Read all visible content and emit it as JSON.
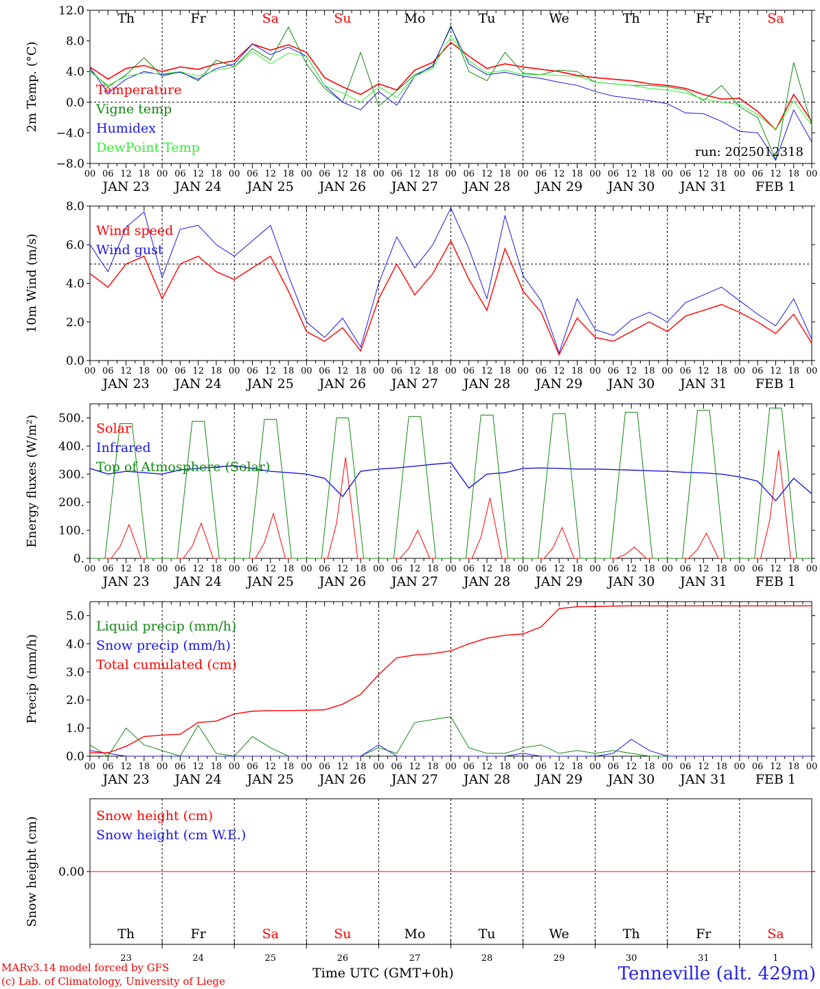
{
  "footer": {
    "credit_line1": "MARv3.14 model forced by GFS",
    "credit_line2": "(c) Lab. of Climatology, University of Liege",
    "x_title": "Time UTC (GMT+0h)",
    "station": "Tenneville (alt. 429m)"
  },
  "colors": {
    "red": "#ff0000",
    "green": "#118811",
    "blue": "#1818e0",
    "lightgreen": "#33ee33",
    "grid": "#000000"
  },
  "hour_ticks": [
    "00",
    "06",
    "12",
    "18"
  ],
  "final_hour_tick": "00",
  "day_ticks": [
    "JAN 23",
    "JAN 24",
    "JAN 25",
    "JAN 26",
    "JAN 27",
    "JAN 28",
    "JAN 29",
    "JAN 30",
    "JAN 31",
    "FEB  1"
  ],
  "weekdays": [
    "Th",
    "Fr",
    "Sa",
    "Su",
    "Mo",
    "Tu",
    "We",
    "Th",
    "Fr",
    "Sa"
  ],
  "weekend_days": [
    2,
    3,
    9
  ],
  "day_numbers": [
    "23",
    "24",
    "25",
    "26",
    "27",
    "28",
    "29",
    "30",
    "31",
    "1"
  ],
  "chart_data": [
    {
      "type": "line",
      "id": "temp",
      "ylabel": "2m Temp. (°C)",
      "ylim": [
        -8,
        12
      ],
      "yticks": [
        "12.0",
        "8.0",
        "4.0",
        "0.0",
        "−4.0",
        "−8.0"
      ],
      "ytick_values": [
        12,
        8,
        4,
        0,
        -4,
        -8
      ],
      "dashed_ref": 0,
      "annotation": "run: 2025012318",
      "x": [
        0,
        6,
        12,
        18,
        24,
        30,
        36,
        42,
        48,
        54,
        60,
        66,
        72,
        78,
        84,
        90,
        96,
        102,
        108,
        114,
        120,
        126,
        132,
        138,
        144,
        150,
        156,
        162,
        168,
        174,
        180,
        186,
        192,
        198,
        204,
        210,
        216,
        222,
        228,
        234,
        240
      ],
      "series": [
        {
          "name": "Temperature",
          "color": "red",
          "width": 1.6,
          "values": [
            4.6,
            3.0,
            4.4,
            4.8,
            4.0,
            4.6,
            4.3,
            5.0,
            5.4,
            7.6,
            6.8,
            7.5,
            6.5,
            3.2,
            2.0,
            1.0,
            2.4,
            1.6,
            4.2,
            5.2,
            7.8,
            6.0,
            4.4,
            5.0,
            4.6,
            4.3,
            4.0,
            3.5,
            3.2,
            3.0,
            2.8,
            2.4,
            2.2,
            1.8,
            1.0,
            0.4,
            0.5,
            -1.2,
            -3.6,
            1.0,
            -2.5
          ]
        },
        {
          "name": "Vigne temp",
          "color": "green",
          "width": 1,
          "values": [
            4.2,
            2.0,
            3.6,
            5.8,
            3.4,
            4.0,
            2.8,
            5.5,
            4.6,
            7.0,
            5.5,
            9.8,
            5.0,
            1.8,
            0.0,
            6.5,
            -0.5,
            1.5,
            3.6,
            4.6,
            10.0,
            4.0,
            2.8,
            6.5,
            3.8,
            3.6,
            4.2,
            4.0,
            2.6,
            2.4,
            2.2,
            2.2,
            2.0,
            1.6,
            0.2,
            2.2,
            -0.6,
            -2.0,
            -7.5,
            5.2,
            -3.0
          ]
        },
        {
          "name": "Humidex",
          "color": "blue",
          "width": 1,
          "values": [
            4.5,
            1.2,
            3.0,
            4.0,
            3.6,
            3.9,
            3.0,
            4.4,
            5.0,
            7.6,
            6.2,
            7.2,
            6.0,
            2.2,
            0.0,
            -1.0,
            1.4,
            -0.4,
            3.4,
            4.8,
            9.8,
            5.0,
            3.6,
            3.9,
            3.4,
            3.1,
            2.6,
            2.2,
            1.4,
            0.8,
            0.5,
            0.2,
            -0.2,
            -1.4,
            -1.5,
            -2.5,
            -3.8,
            -4.0,
            -7.6,
            -1.0,
            -5.2
          ]
        },
        {
          "name": "DewPoint Temp",
          "color": "lightgreen",
          "width": 1,
          "values": [
            4.0,
            2.2,
            3.4,
            3.8,
            3.7,
            4.0,
            3.4,
            4.2,
            4.6,
            6.6,
            5.0,
            6.4,
            6.0,
            2.2,
            1.2,
            0.0,
            2.0,
            0.6,
            3.4,
            4.4,
            8.6,
            5.4,
            3.8,
            4.2,
            3.6,
            3.6,
            3.5,
            3.4,
            2.6,
            2.4,
            2.2,
            1.8,
            1.6,
            1.2,
            0.4,
            0.0,
            -0.3,
            -1.6,
            -3.6,
            0.2,
            -3.0
          ]
        }
      ]
    },
    {
      "type": "line",
      "id": "wind",
      "ylabel": "10m Wind (m/s)",
      "ylim": [
        0,
        8
      ],
      "yticks": [
        "8.0",
        "6.0",
        "4.0",
        "2.0",
        "0.0"
      ],
      "ytick_values": [
        8,
        6,
        4,
        2,
        0
      ],
      "dashed_ref": 5,
      "x": [
        0,
        6,
        12,
        18,
        24,
        30,
        36,
        42,
        48,
        54,
        60,
        66,
        72,
        78,
        84,
        90,
        96,
        102,
        108,
        114,
        120,
        126,
        132,
        138,
        144,
        150,
        156,
        162,
        168,
        174,
        180,
        186,
        192,
        198,
        204,
        210,
        216,
        222,
        228,
        234,
        240
      ],
      "series": [
        {
          "name": "Wind speed",
          "color": "red",
          "width": 1.4,
          "values": [
            4.5,
            3.8,
            5.0,
            5.4,
            3.2,
            5.0,
            5.4,
            4.6,
            4.2,
            4.8,
            5.4,
            3.6,
            1.5,
            1.0,
            1.7,
            0.5,
            3.2,
            5.0,
            3.4,
            4.5,
            6.2,
            4.2,
            2.6,
            5.8,
            3.6,
            2.5,
            0.3,
            2.2,
            1.2,
            1.0,
            1.5,
            2.0,
            1.5,
            2.3,
            2.6,
            2.9,
            2.5,
            2.0,
            1.4,
            2.4,
            0.9
          ]
        },
        {
          "name": "Wind gust",
          "color": "blue",
          "width": 1,
          "values": [
            6.0,
            4.6,
            6.9,
            7.7,
            4.3,
            6.8,
            7.0,
            6.0,
            5.4,
            6.2,
            7.0,
            4.4,
            2.0,
            1.2,
            2.2,
            0.7,
            4.0,
            6.4,
            4.8,
            6.0,
            7.9,
            5.8,
            3.2,
            7.5,
            4.4,
            3.1,
            0.4,
            3.2,
            1.6,
            1.3,
            2.1,
            2.5,
            2.0,
            3.0,
            3.4,
            3.8,
            3.1,
            2.4,
            1.8,
            3.2,
            1.1
          ]
        }
      ]
    },
    {
      "type": "line",
      "id": "energy",
      "ylabel": "Energy fluxes (W/m²)",
      "ylim": [
        0,
        550
      ],
      "yticks": [
        "500.",
        "400.",
        "300.",
        "200.",
        "100.",
        "0."
      ],
      "ytick_values": [
        500,
        400,
        300,
        200,
        100,
        0
      ],
      "x_peaks": [
        12,
        36,
        60,
        84,
        108,
        132,
        156,
        180,
        204,
        228
      ],
      "series": [
        {
          "name": "Solar",
          "color": "red",
          "width": 1,
          "peaks": [
            120,
            125,
            160,
            360,
            100,
            215,
            110,
            40,
            90,
            385
          ]
        },
        {
          "name": "Infrared",
          "color": "blue",
          "width": 1.4,
          "x": [
            0,
            6,
            12,
            18,
            24,
            30,
            36,
            42,
            48,
            54,
            60,
            66,
            72,
            78,
            84,
            90,
            96,
            102,
            108,
            114,
            120,
            126,
            132,
            138,
            144,
            150,
            156,
            162,
            168,
            174,
            180,
            186,
            192,
            198,
            204,
            210,
            216,
            222,
            228,
            234,
            240
          ],
          "values": [
            320,
            300,
            310,
            305,
            300,
            315,
            320,
            325,
            330,
            320,
            310,
            305,
            300,
            285,
            220,
            310,
            318,
            322,
            328,
            335,
            340,
            250,
            300,
            305,
            320,
            322,
            320,
            318,
            318,
            316,
            314,
            312,
            310,
            306,
            304,
            300,
            290,
            275,
            205,
            285,
            230
          ]
        },
        {
          "name": "Top of Atmosphere (Solar)",
          "color": "green",
          "width": 1,
          "peaks": [
            480,
            488,
            495,
            500,
            505,
            510,
            515,
            520,
            527,
            535
          ]
        }
      ]
    },
    {
      "type": "line",
      "id": "precip",
      "ylabel": "Precip (mm/h)",
      "ylim": [
        0,
        5.5
      ],
      "yticks": [
        "5.0",
        "4.0",
        "3.0",
        "2.0",
        "1.0",
        "0.0"
      ],
      "ytick_values": [
        5,
        4,
        3,
        2,
        1,
        0
      ],
      "x": [
        0,
        6,
        12,
        18,
        24,
        30,
        36,
        42,
        48,
        54,
        60,
        66,
        72,
        78,
        84,
        90,
        96,
        102,
        108,
        114,
        120,
        126,
        132,
        138,
        144,
        150,
        156,
        162,
        168,
        174,
        180,
        186,
        192,
        198,
        204,
        210,
        216,
        222,
        228,
        234,
        240
      ],
      "series": [
        {
          "name": "Liquid precip (mm/h)",
          "color": "green",
          "width": 1,
          "values": [
            0.4,
            0.0,
            1.0,
            0.4,
            0.2,
            0.0,
            1.1,
            0.1,
            0.0,
            0.7,
            0.3,
            0.0,
            0.0,
            0.0,
            0.0,
            0.0,
            0.3,
            0.1,
            1.2,
            1.3,
            1.4,
            0.3,
            0.1,
            0.1,
            0.3,
            0.4,
            0.1,
            0.2,
            0.1,
            0.2,
            0.1,
            0.0,
            0.0,
            0.0,
            0.0,
            0.0,
            0.0,
            0.0,
            0.0,
            0.0,
            0.0
          ]
        },
        {
          "name": "Snow precip (mm/h)",
          "color": "blue",
          "width": 1,
          "values": [
            0.2,
            0.1,
            0.0,
            0.0,
            0.0,
            0.0,
            0.0,
            0.0,
            0.0,
            0.0,
            0.0,
            0.0,
            0.0,
            0.0,
            0.0,
            0.0,
            0.4,
            0.0,
            0.0,
            0.0,
            0.0,
            0.0,
            0.0,
            0.0,
            0.1,
            0.0,
            0.0,
            0.0,
            0.0,
            0.1,
            0.6,
            0.2,
            0.0,
            0.0,
            0.0,
            0.0,
            0.0,
            0.0,
            0.0,
            0.0,
            0.0
          ]
        },
        {
          "name": "Total cumulated (cm)",
          "color": "red",
          "width": 1.4,
          "values": [
            0.12,
            0.12,
            0.35,
            0.7,
            0.75,
            0.78,
            1.2,
            1.25,
            1.5,
            1.6,
            1.62,
            1.62,
            1.63,
            1.65,
            1.85,
            2.2,
            2.9,
            3.5,
            3.6,
            3.65,
            3.75,
            4.0,
            4.2,
            4.3,
            4.35,
            4.6,
            5.25,
            5.32,
            5.33,
            5.34,
            5.35,
            5.35,
            5.35,
            5.35,
            5.35,
            5.35,
            5.35,
            5.35,
            5.35,
            5.35,
            5.35
          ]
        }
      ]
    },
    {
      "type": "line",
      "id": "snow",
      "ylabel": "Snow height (cm)",
      "yticks": [
        "0.00"
      ],
      "ytick_values": [
        0
      ],
      "series": [
        {
          "name": "Snow height (cm)",
          "color": "red",
          "width": 1,
          "values": [
            0,
            0
          ]
        },
        {
          "name": "Snow height (cm W.E.)",
          "color": "blue",
          "width": 1,
          "values": [
            0,
            0
          ]
        }
      ]
    }
  ]
}
